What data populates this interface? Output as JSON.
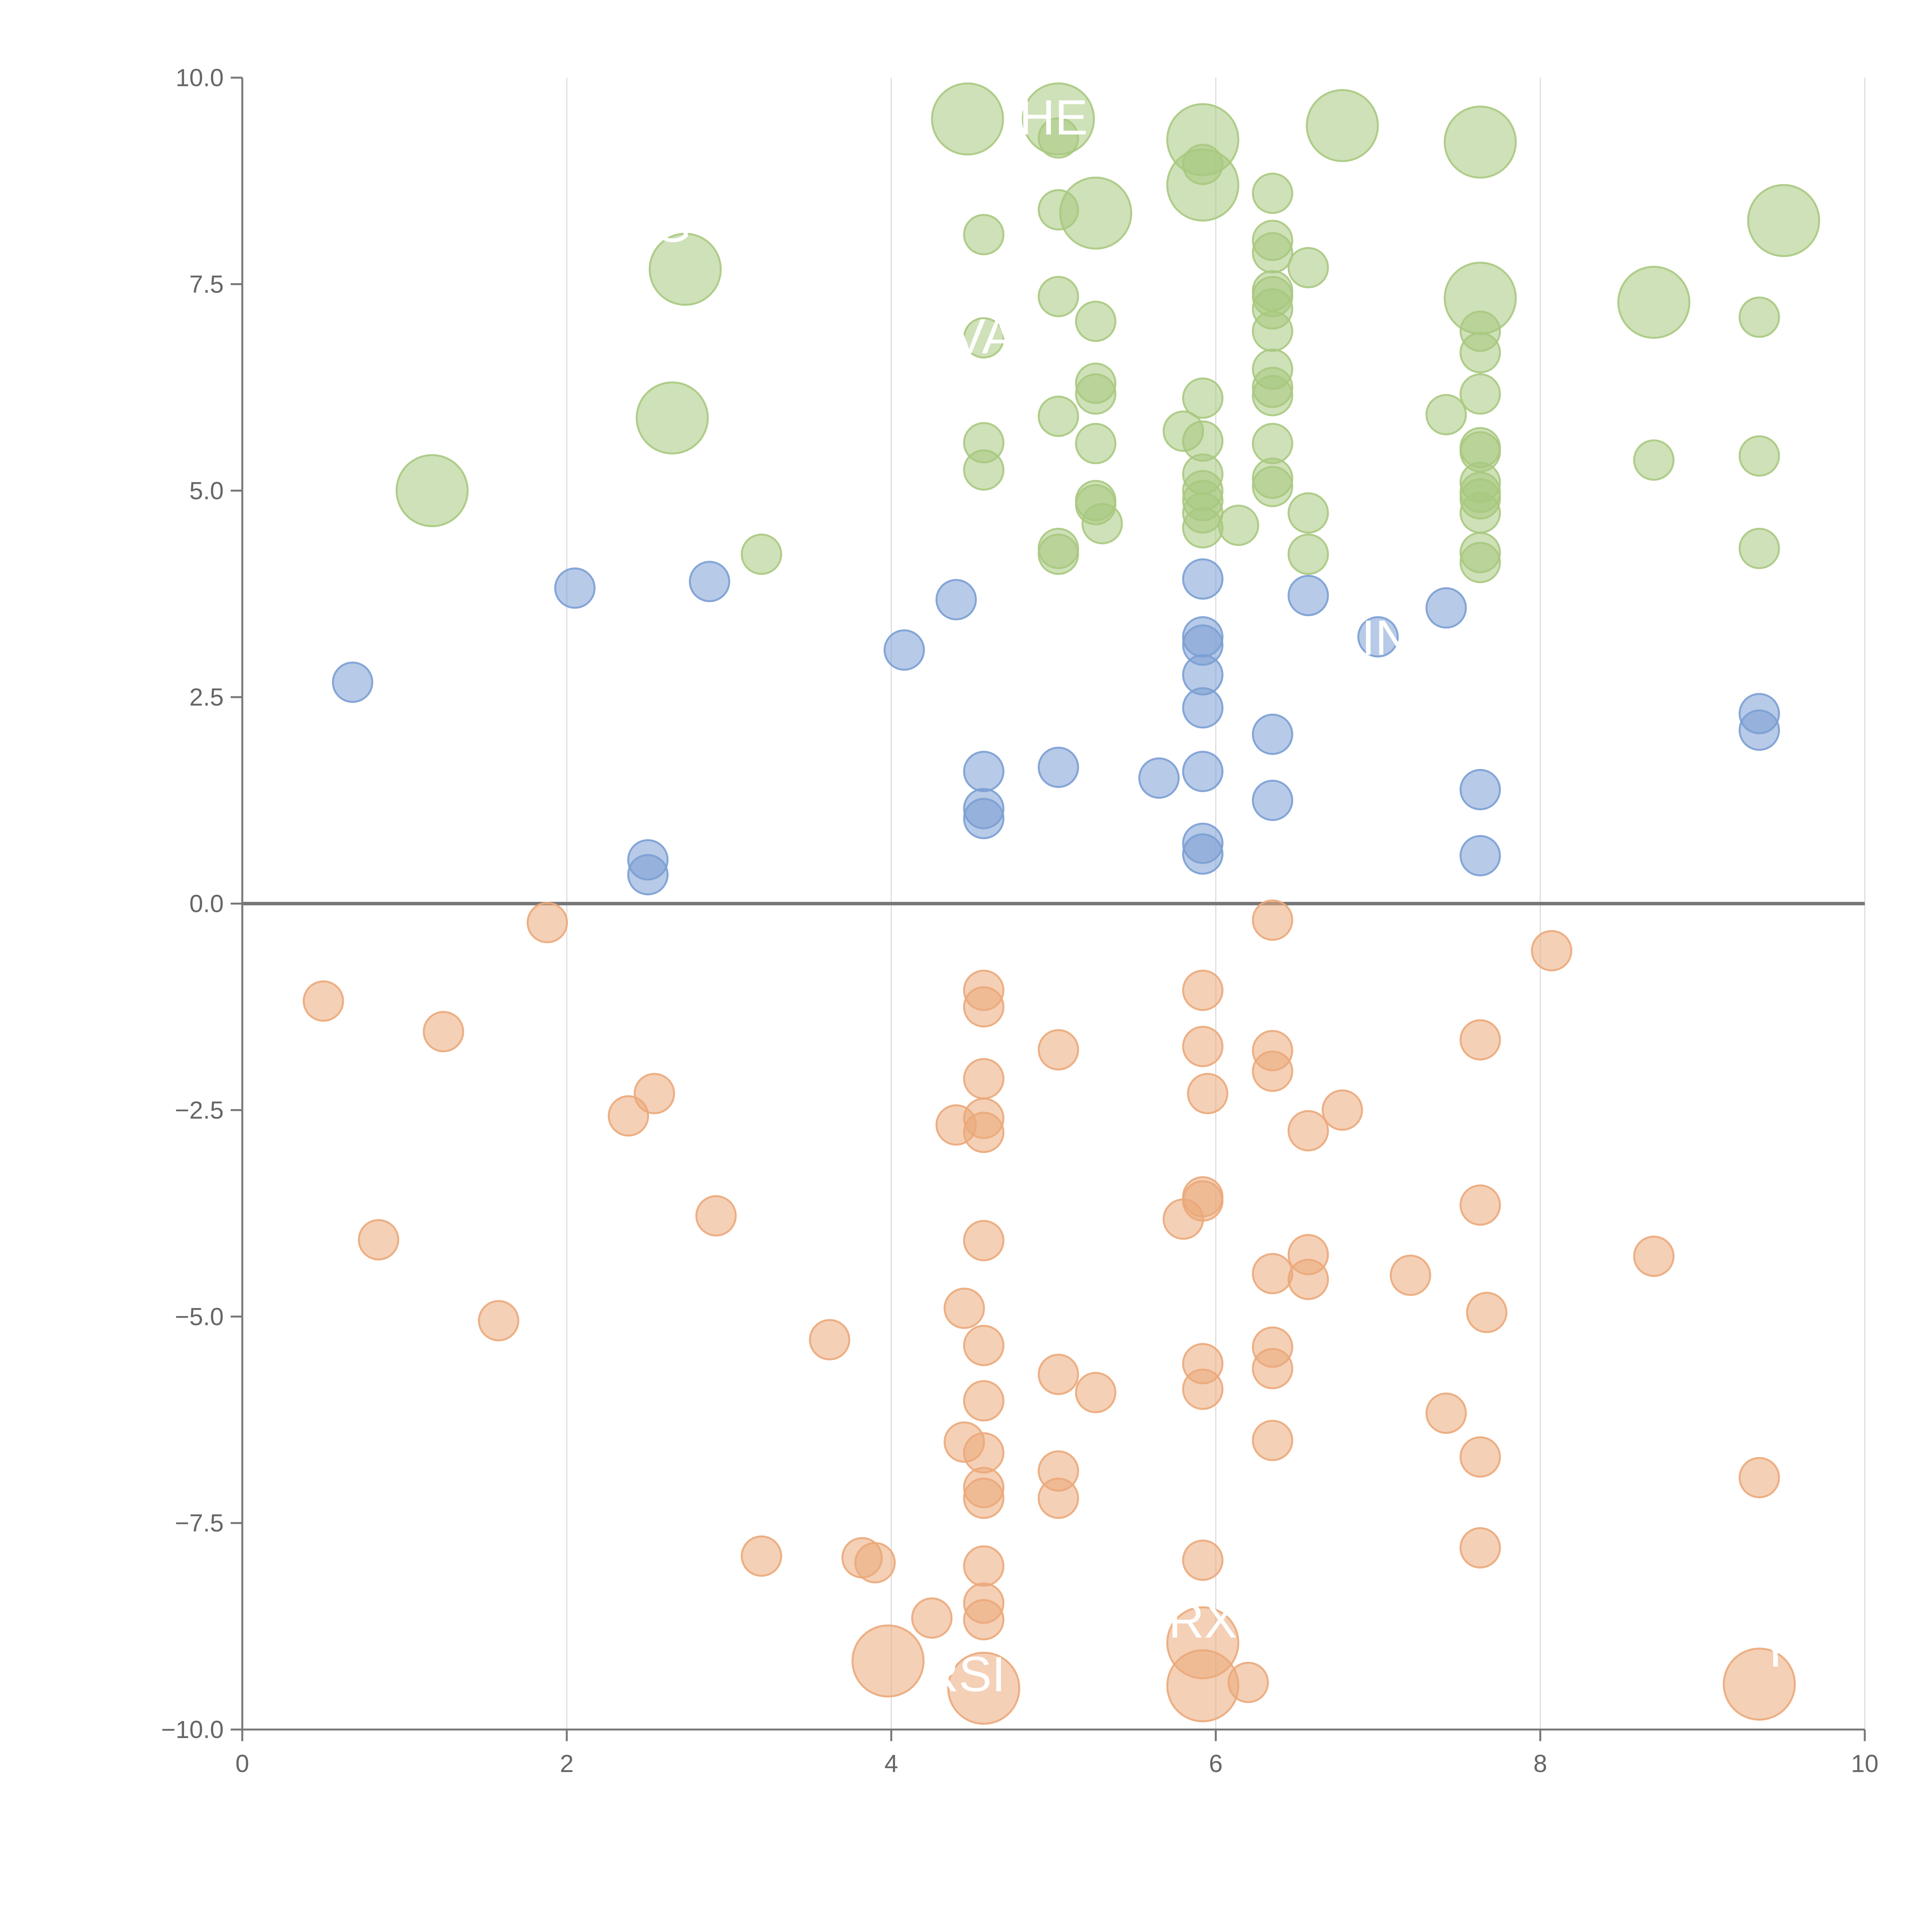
{
  "chart_data": {
    "type": "scatter",
    "title": "",
    "xlabel": "",
    "ylabel": "",
    "xlim": [
      0,
      10
    ],
    "ylim": [
      -10,
      10
    ],
    "x_ticks": [
      0,
      2,
      4,
      6,
      8,
      10
    ],
    "x_tick_labels": [
      "0",
      "2",
      "4",
      "6",
      "8",
      "10"
    ],
    "y_ticks": [
      -10,
      -7.5,
      -5,
      -2.5,
      0,
      2.5,
      5,
      7.5,
      10
    ],
    "y_tick_labels": [
      "−10.0",
      "−7.5",
      "−5.0",
      "−2.5",
      "0.0",
      "2.5",
      "5.0",
      "7.5",
      "10.0"
    ],
    "grid": "vertical",
    "reference_line_y": 0,
    "series": [
      {
        "name": "green",
        "color": "#a8c97f",
        "points": [
          {
            "x": 1.17,
            "y": 5.0,
            "size": "large"
          },
          {
            "x": 2.65,
            "y": 5.88,
            "size": "large"
          },
          {
            "x": 2.73,
            "y": 7.68,
            "size": "large"
          },
          {
            "x": 3.2,
            "y": 4.23
          },
          {
            "x": 4.47,
            "y": 9.5,
            "size": "large"
          },
          {
            "x": 4.57,
            "y": 8.1
          },
          {
            "x": 4.57,
            "y": 6.85
          },
          {
            "x": 4.57,
            "y": 5.58
          },
          {
            "x": 4.57,
            "y": 5.25
          },
          {
            "x": 5.03,
            "y": 9.5,
            "size": "large"
          },
          {
            "x": 5.03,
            "y": 9.27
          },
          {
            "x": 5.03,
            "y": 8.4
          },
          {
            "x": 5.03,
            "y": 7.35
          },
          {
            "x": 5.03,
            "y": 5.9
          },
          {
            "x": 5.03,
            "y": 4.3
          },
          {
            "x": 5.03,
            "y": 4.23
          },
          {
            "x": 5.26,
            "y": 8.36,
            "size": "large"
          },
          {
            "x": 5.26,
            "y": 7.05
          },
          {
            "x": 5.26,
            "y": 6.3
          },
          {
            "x": 5.26,
            "y": 6.17
          },
          {
            "x": 5.26,
            "y": 5.57
          },
          {
            "x": 5.26,
            "y": 4.88
          },
          {
            "x": 5.26,
            "y": 4.83
          },
          {
            "x": 5.3,
            "y": 4.6
          },
          {
            "x": 5.8,
            "y": 5.72
          },
          {
            "x": 5.92,
            "y": 9.25,
            "size": "large"
          },
          {
            "x": 5.92,
            "y": 8.7,
            "size": "large"
          },
          {
            "x": 5.92,
            "y": 8.95
          },
          {
            "x": 5.92,
            "y": 6.12
          },
          {
            "x": 5.92,
            "y": 5.6
          },
          {
            "x": 5.92,
            "y": 5.2
          },
          {
            "x": 5.92,
            "y": 5.0
          },
          {
            "x": 5.92,
            "y": 4.88
          },
          {
            "x": 5.92,
            "y": 4.73
          },
          {
            "x": 5.92,
            "y": 4.55
          },
          {
            "x": 6.14,
            "y": 4.58
          },
          {
            "x": 6.35,
            "y": 8.6
          },
          {
            "x": 6.35,
            "y": 8.03
          },
          {
            "x": 6.35,
            "y": 7.88
          },
          {
            "x": 6.35,
            "y": 7.42
          },
          {
            "x": 6.35,
            "y": 7.35
          },
          {
            "x": 6.35,
            "y": 7.2
          },
          {
            "x": 6.35,
            "y": 6.93
          },
          {
            "x": 6.35,
            "y": 6.47
          },
          {
            "x": 6.35,
            "y": 6.25
          },
          {
            "x": 6.35,
            "y": 6.15
          },
          {
            "x": 6.35,
            "y": 5.57
          },
          {
            "x": 6.35,
            "y": 5.15
          },
          {
            "x": 6.35,
            "y": 5.05
          },
          {
            "x": 6.57,
            "y": 7.7
          },
          {
            "x": 6.57,
            "y": 4.73
          },
          {
            "x": 6.57,
            "y": 4.23
          },
          {
            "x": 6.78,
            "y": 9.42,
            "size": "large"
          },
          {
            "x": 7.42,
            "y": 5.92
          },
          {
            "x": 7.63,
            "y": 9.22,
            "size": "large"
          },
          {
            "x": 7.63,
            "y": 7.33,
            "size": "large"
          },
          {
            "x": 7.63,
            "y": 6.93
          },
          {
            "x": 7.63,
            "y": 6.67
          },
          {
            "x": 7.63,
            "y": 6.17
          },
          {
            "x": 7.63,
            "y": 5.52
          },
          {
            "x": 7.63,
            "y": 5.47
          },
          {
            "x": 7.63,
            "y": 5.1
          },
          {
            "x": 7.63,
            "y": 4.98
          },
          {
            "x": 7.63,
            "y": 4.9
          },
          {
            "x": 7.63,
            "y": 4.73
          },
          {
            "x": 7.63,
            "y": 4.25
          },
          {
            "x": 7.63,
            "y": 4.13
          },
          {
            "x": 8.7,
            "y": 7.28,
            "size": "large"
          },
          {
            "x": 8.7,
            "y": 5.37
          },
          {
            "x": 9.35,
            "y": 7.1
          },
          {
            "x": 9.35,
            "y": 5.42
          },
          {
            "x": 9.35,
            "y": 4.3
          },
          {
            "x": 9.5,
            "y": 8.27,
            "size": "large"
          }
        ]
      },
      {
        "name": "blue",
        "color": "#7b9fd4",
        "points": [
          {
            "x": 0.68,
            "y": 2.68
          },
          {
            "x": 2.05,
            "y": 3.82
          },
          {
            "x": 2.5,
            "y": 0.53
          },
          {
            "x": 2.5,
            "y": 0.35
          },
          {
            "x": 2.88,
            "y": 3.9
          },
          {
            "x": 4.08,
            "y": 3.07
          },
          {
            "x": 4.4,
            "y": 3.68
          },
          {
            "x": 4.57,
            "y": 1.6
          },
          {
            "x": 4.57,
            "y": 1.15
          },
          {
            "x": 4.57,
            "y": 1.03
          },
          {
            "x": 5.03,
            "y": 1.65
          },
          {
            "x": 5.65,
            "y": 1.52
          },
          {
            "x": 5.92,
            "y": 3.93
          },
          {
            "x": 5.92,
            "y": 3.23
          },
          {
            "x": 5.92,
            "y": 3.13
          },
          {
            "x": 5.92,
            "y": 2.77
          },
          {
            "x": 5.92,
            "y": 2.37
          },
          {
            "x": 5.92,
            "y": 1.6
          },
          {
            "x": 5.92,
            "y": 0.73
          },
          {
            "x": 5.92,
            "y": 0.6
          },
          {
            "x": 6.35,
            "y": 2.05
          },
          {
            "x": 6.35,
            "y": 1.25
          },
          {
            "x": 6.57,
            "y": 3.73
          },
          {
            "x": 7.0,
            "y": 3.23
          },
          {
            "x": 7.42,
            "y": 3.58
          },
          {
            "x": 7.63,
            "y": 1.38
          },
          {
            "x": 7.63,
            "y": 0.58
          },
          {
            "x": 9.35,
            "y": 2.3
          },
          {
            "x": 9.35,
            "y": 2.1
          }
        ]
      },
      {
        "name": "orange",
        "color": "#eba97a",
        "points": [
          {
            "x": 0.5,
            "y": -1.18
          },
          {
            "x": 0.84,
            "y": -4.07
          },
          {
            "x": 1.24,
            "y": -1.55
          },
          {
            "x": 1.58,
            "y": -5.05
          },
          {
            "x": 1.88,
            "y": -0.23
          },
          {
            "x": 2.38,
            "y": -2.57
          },
          {
            "x": 2.54,
            "y": -2.3
          },
          {
            "x": 2.92,
            "y": -3.78
          },
          {
            "x": 3.2,
            "y": -7.9
          },
          {
            "x": 3.62,
            "y": -5.28
          },
          {
            "x": 3.82,
            "y": -7.92
          },
          {
            "x": 3.9,
            "y": -7.98
          },
          {
            "x": 3.98,
            "y": -9.17,
            "size": "large"
          },
          {
            "x": 4.25,
            "y": -8.65
          },
          {
            "x": 4.4,
            "y": -2.68
          },
          {
            "x": 4.45,
            "y": -4.9
          },
          {
            "x": 4.45,
            "y": -6.52
          },
          {
            "x": 4.57,
            "y": -1.05
          },
          {
            "x": 4.57,
            "y": -1.25
          },
          {
            "x": 4.57,
            "y": -2.12
          },
          {
            "x": 4.57,
            "y": -2.6
          },
          {
            "x": 4.57,
            "y": -2.77
          },
          {
            "x": 4.57,
            "y": -4.08
          },
          {
            "x": 4.57,
            "y": -5.35
          },
          {
            "x": 4.57,
            "y": -6.02
          },
          {
            "x": 4.57,
            "y": -6.65
          },
          {
            "x": 4.57,
            "y": -7.07
          },
          {
            "x": 4.57,
            "y": -7.2
          },
          {
            "x": 4.57,
            "y": -8.02
          },
          {
            "x": 4.57,
            "y": -8.47
          },
          {
            "x": 4.57,
            "y": -8.67
          },
          {
            "x": 4.57,
            "y": -9.5,
            "size": "large"
          },
          {
            "x": 5.03,
            "y": -1.77
          },
          {
            "x": 5.03,
            "y": -5.7
          },
          {
            "x": 5.03,
            "y": -6.87
          },
          {
            "x": 5.03,
            "y": -7.2
          },
          {
            "x": 5.26,
            "y": -5.92
          },
          {
            "x": 5.8,
            "y": -3.82
          },
          {
            "x": 5.92,
            "y": -1.05
          },
          {
            "x": 5.92,
            "y": -1.73
          },
          {
            "x": 5.92,
            "y": -3.55
          },
          {
            "x": 5.92,
            "y": -3.6
          },
          {
            "x": 5.92,
            "y": -5.57
          },
          {
            "x": 5.92,
            "y": -5.88
          },
          {
            "x": 5.92,
            "y": -7.95
          },
          {
            "x": 5.92,
            "y": -8.95,
            "size": "large"
          },
          {
            "x": 5.92,
            "y": -9.47,
            "size": "large"
          },
          {
            "x": 5.95,
            "y": -2.3
          },
          {
            "x": 6.2,
            "y": -9.43
          },
          {
            "x": 6.35,
            "y": -0.2
          },
          {
            "x": 6.35,
            "y": -1.78
          },
          {
            "x": 6.35,
            "y": -2.03
          },
          {
            "x": 6.35,
            "y": -4.48
          },
          {
            "x": 6.35,
            "y": -5.37
          },
          {
            "x": 6.35,
            "y": -5.63
          },
          {
            "x": 6.35,
            "y": -6.5
          },
          {
            "x": 6.57,
            "y": -2.75
          },
          {
            "x": 6.57,
            "y": -4.25
          },
          {
            "x": 6.57,
            "y": -4.55
          },
          {
            "x": 6.78,
            "y": -2.5
          },
          {
            "x": 7.2,
            "y": -4.5
          },
          {
            "x": 7.42,
            "y": -6.17
          },
          {
            "x": 7.63,
            "y": -1.65
          },
          {
            "x": 7.63,
            "y": -3.65
          },
          {
            "x": 7.63,
            "y": -6.7
          },
          {
            "x": 7.63,
            "y": -7.8
          },
          {
            "x": 7.67,
            "y": -4.95
          },
          {
            "x": 8.07,
            "y": -0.57
          },
          {
            "x": 8.7,
            "y": -4.27
          },
          {
            "x": 9.35,
            "y": -6.95
          },
          {
            "x": 9.35,
            "y": -9.45,
            "size": "large"
          }
        ]
      }
    ],
    "labels": [
      {
        "text": "HE",
        "x": 5.0,
        "y": 9.5
      },
      {
        "text": "G",
        "x": 2.65,
        "y": 8.2
      },
      {
        "text": "VA",
        "x": 4.57,
        "y": 6.85
      },
      {
        "text": "IN",
        "x": 7.05,
        "y": 3.2
      },
      {
        "text": "RX",
        "x": 5.92,
        "y": -8.7
      },
      {
        "text": "RSI",
        "x": 4.45,
        "y": -9.35
      },
      {
        "text": "Y",
        "x": 9.45,
        "y": -9.05
      }
    ]
  }
}
